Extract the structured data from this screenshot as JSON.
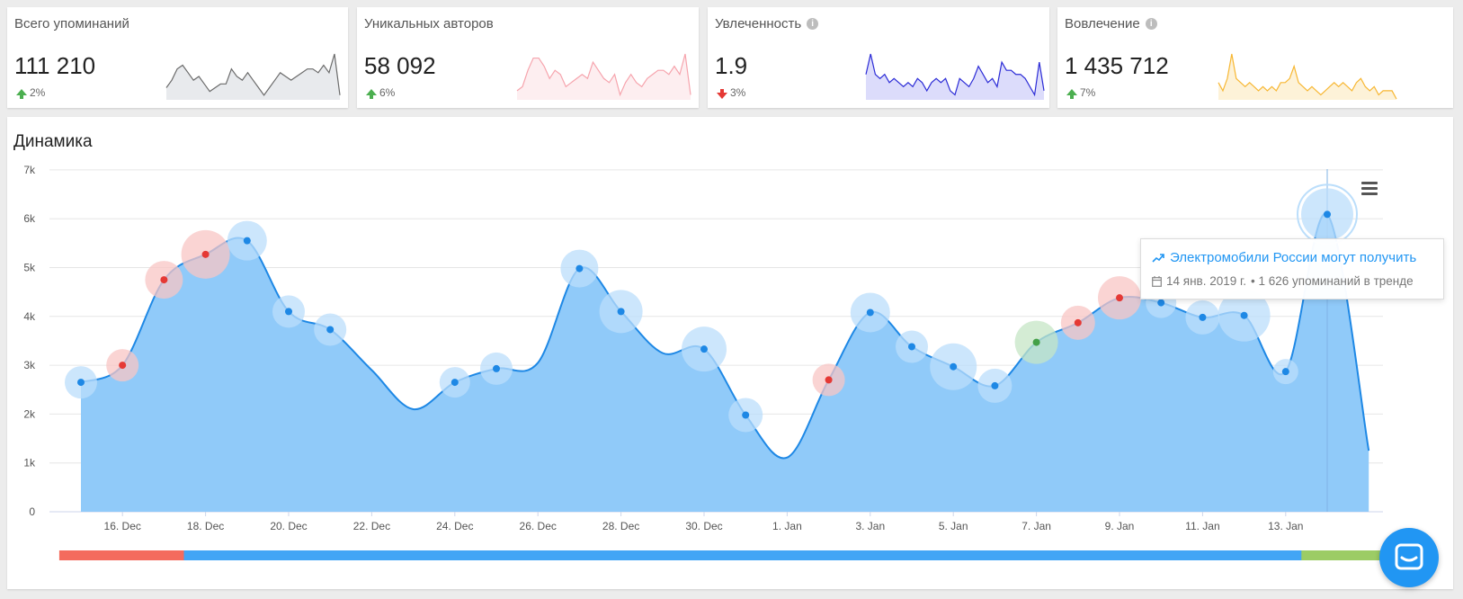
{
  "cards": [
    {
      "title": "Всего упоминаний",
      "info": false,
      "value": "111 210",
      "change": "2%",
      "direction": "up",
      "spark_color": "#6b6b6b",
      "spark_fill": "#e8eaed",
      "spark": [
        3,
        5,
        8,
        9,
        7,
        5,
        6,
        4,
        2,
        3,
        4,
        4,
        8,
        6,
        5,
        7,
        5,
        3,
        1,
        3,
        5,
        7,
        6,
        5,
        6,
        7,
        8,
        8,
        7,
        9,
        7,
        12,
        1
      ]
    },
    {
      "title": "Уникальных авторов",
      "info": false,
      "value": "58 092",
      "change": "6%",
      "direction": "up",
      "spark_color": "#f6a4ad",
      "spark_fill": "#fdeef0",
      "spark": [
        2,
        3,
        7,
        10,
        10,
        8,
        5,
        7,
        6,
        3,
        4,
        5,
        6,
        5,
        9,
        7,
        5,
        4,
        6,
        1,
        4,
        6,
        4,
        3,
        5,
        6,
        7,
        7,
        6,
        8,
        6,
        11,
        1
      ]
    },
    {
      "title": "Увлеченность",
      "info": true,
      "value": "1.9",
      "change": "3%",
      "direction": "down",
      "spark_color": "#2b2bd6",
      "spark_fill": "#dcdcfb",
      "spark": [
        6,
        11,
        6,
        5,
        6,
        4,
        5,
        4,
        3,
        4,
        3,
        5,
        4,
        2,
        4,
        5,
        4,
        5,
        2,
        1,
        5,
        4,
        3,
        5,
        8,
        6,
        4,
        5,
        3,
        9,
        7,
        7,
        6,
        6,
        5,
        3,
        1,
        9,
        2
      ]
    },
    {
      "title": "Вовлечение",
      "info": true,
      "value": "1 435 712",
      "change": "7%",
      "direction": "up",
      "spark_color": "#f7b733",
      "spark_fill": "#fdf2d8",
      "spark": [
        4,
        2,
        5,
        11,
        5,
        4,
        3,
        4,
        3,
        2,
        3,
        2,
        3,
        2,
        4,
        4,
        5,
        8,
        4,
        3,
        2,
        3,
        2,
        1,
        2,
        3,
        4,
        3,
        4,
        3,
        2,
        4,
        5,
        3,
        2,
        3,
        1,
        2,
        2,
        2,
        0
      ]
    }
  ],
  "panel": {
    "title": "Динамика"
  },
  "chart_data": {
    "type": "area",
    "title": "Динамика",
    "y_ticks": [
      "0",
      "1k",
      "2k",
      "3k",
      "4k",
      "5k",
      "6k",
      "7k"
    ],
    "ylim": [
      0,
      7000
    ],
    "x_ticks": [
      "16. Dec",
      "18. Dec",
      "20. Dec",
      "22. Dec",
      "24. Dec",
      "26. Dec",
      "28. Dec",
      "30. Dec",
      "1. Jan",
      "3. Jan",
      "5. Jan",
      "7. Jan",
      "9. Jan",
      "11. Jan",
      "13. Jan"
    ],
    "x_tick_index": [
      1,
      3,
      5,
      7,
      9,
      11,
      13,
      15,
      17,
      19,
      21,
      23,
      25,
      27,
      29
    ],
    "values": [
      2650,
      3000,
      4750,
      5270,
      5550,
      4100,
      3730,
      2900,
      2100,
      2650,
      2930,
      3050,
      4980,
      4100,
      3250,
      3330,
      1980,
      1110,
      2700,
      4080,
      3380,
      2970,
      2580,
      3470,
      3870,
      4380,
      4280,
      3980,
      4020,
      2870,
      6090,
      1250
    ],
    "markers": [
      {
        "i": 0,
        "color": "#1e88e5",
        "halo": "#bbdefb",
        "r": 18
      },
      {
        "i": 1,
        "color": "#e53935",
        "halo": "#f8c6c4",
        "r": 18
      },
      {
        "i": 2,
        "color": "#e53935",
        "halo": "#f8c6c4",
        "r": 21
      },
      {
        "i": 3,
        "color": "#e53935",
        "halo": "#f8c6c4",
        "r": 27
      },
      {
        "i": 4,
        "color": "#1e88e5",
        "halo": "#bbdefb",
        "r": 22
      },
      {
        "i": 5,
        "color": "#1e88e5",
        "halo": "#bbdefb",
        "r": 18
      },
      {
        "i": 6,
        "color": "#1e88e5",
        "halo": "#bbdefb",
        "r": 18
      },
      {
        "i": 9,
        "color": "#1e88e5",
        "halo": "#bbdefb",
        "r": 17
      },
      {
        "i": 10,
        "color": "#1e88e5",
        "halo": "#bbdefb",
        "r": 18
      },
      {
        "i": 12,
        "color": "#1e88e5",
        "halo": "#bbdefb",
        "r": 21
      },
      {
        "i": 13,
        "color": "#1e88e5",
        "halo": "#bbdefb",
        "r": 24
      },
      {
        "i": 15,
        "color": "#1e88e5",
        "halo": "#bbdefb",
        "r": 25
      },
      {
        "i": 16,
        "color": "#1e88e5",
        "halo": "#bbdefb",
        "r": 19
      },
      {
        "i": 18,
        "color": "#e53935",
        "halo": "#f8c6c4",
        "r": 18
      },
      {
        "i": 19,
        "color": "#1e88e5",
        "halo": "#bbdefb",
        "r": 22
      },
      {
        "i": 20,
        "color": "#1e88e5",
        "halo": "#bbdefb",
        "r": 18
      },
      {
        "i": 21,
        "color": "#1e88e5",
        "halo": "#bbdefb",
        "r": 26
      },
      {
        "i": 22,
        "color": "#1e88e5",
        "halo": "#bbdefb",
        "r": 19
      },
      {
        "i": 23,
        "color": "#43a047",
        "halo": "#c5e5c6",
        "r": 24
      },
      {
        "i": 24,
        "color": "#e53935",
        "halo": "#f8c6c4",
        "r": 19
      },
      {
        "i": 25,
        "color": "#e53935",
        "halo": "#f8c6c4",
        "r": 24
      },
      {
        "i": 26,
        "color": "#1e88e5",
        "halo": "#bbdefb",
        "r": 17
      },
      {
        "i": 27,
        "color": "#1e88e5",
        "halo": "#bbdefb",
        "r": 19
      },
      {
        "i": 28,
        "color": "#1e88e5",
        "halo": "#bbdefb",
        "r": 29
      },
      {
        "i": 29,
        "color": "#1e88e5",
        "halo": "#bbdefb",
        "r": 14
      },
      {
        "i": 30,
        "color": "#1e88e5",
        "halo": "#bbdefb",
        "r": 29
      }
    ],
    "highlight_index": 30,
    "line_color": "#1e88e5",
    "fill_color": "#90caf9",
    "sentiment_bar": [
      {
        "from": 0,
        "to": 3,
        "color": "#f46b5d"
      },
      {
        "from": 3,
        "to": 29.9,
        "color": "#42a5f5"
      },
      {
        "from": 29.9,
        "to": 32.5,
        "color": "#9ccc65"
      }
    ]
  },
  "tooltip": {
    "title": "Электромобили России могут получить",
    "date": "14 янв. 2019 г.",
    "mentions": "• 1 626 упоминаний в тренде"
  },
  "icons": {
    "menu": "hamburger-menu-icon",
    "calendar": "calendar-icon",
    "trend": "trend-icon",
    "chat": "chat-icon",
    "info": "info-icon"
  }
}
